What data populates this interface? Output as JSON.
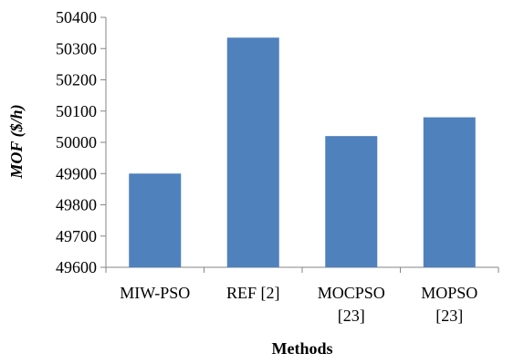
{
  "chart_data": {
    "type": "bar",
    "categories": [
      [
        "MIW-PSO"
      ],
      [
        "REF [2]"
      ],
      [
        "MOCPSO",
        "[23]"
      ],
      [
        "MOPSO",
        "[23]"
      ]
    ],
    "values": [
      49900,
      50335,
      50020,
      50080
    ],
    "xlabel": "Methods",
    "ylabel": "MOF ($/h)",
    "ylim": [
      49600,
      50400
    ],
    "yticks": [
      49600,
      49700,
      49800,
      49900,
      50000,
      50100,
      50200,
      50300,
      50400
    ],
    "grid": false,
    "legend": "none",
    "bar_color": "#4f81bd",
    "axis_color": "#868686"
  }
}
